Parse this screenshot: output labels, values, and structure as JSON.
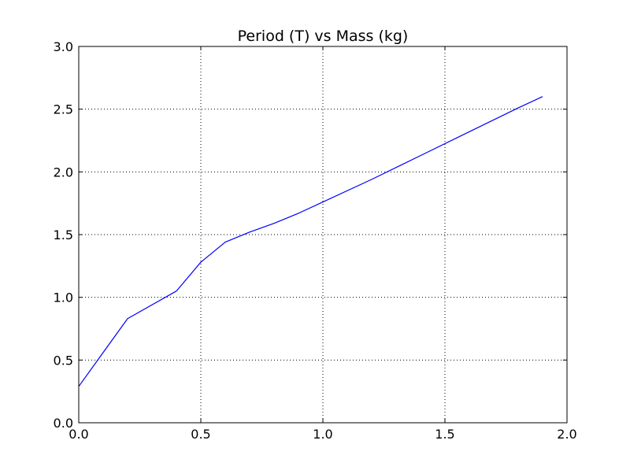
{
  "chart_data": {
    "type": "line",
    "title": "Period (T) vs Mass (kg)",
    "xlabel": "",
    "ylabel": "",
    "xlim": [
      0.0,
      2.0
    ],
    "ylim": [
      0.0,
      3.0
    ],
    "grid": true,
    "x_ticks": [
      {
        "value": 0.0,
        "label": "0.0"
      },
      {
        "value": 0.5,
        "label": "0.5"
      },
      {
        "value": 1.0,
        "label": "1.0"
      },
      {
        "value": 1.5,
        "label": "1.5"
      },
      {
        "value": 2.0,
        "label": "2.0"
      }
    ],
    "y_ticks": [
      {
        "value": 0.0,
        "label": "0.0"
      },
      {
        "value": 0.5,
        "label": "0.5"
      },
      {
        "value": 1.0,
        "label": "1.0"
      },
      {
        "value": 1.5,
        "label": "1.5"
      },
      {
        "value": 2.0,
        "label": "2.0"
      },
      {
        "value": 2.5,
        "label": "2.5"
      },
      {
        "value": 3.0,
        "label": "3.0"
      }
    ],
    "series": [
      {
        "color": "#0000ff",
        "x": [
          0.0,
          0.2,
          0.4,
          0.5,
          0.6,
          0.7,
          0.8,
          0.9,
          1.0,
          1.2,
          1.4,
          1.6,
          1.8,
          1.9
        ],
        "y": [
          0.29,
          0.83,
          1.05,
          1.28,
          1.44,
          1.52,
          1.59,
          1.67,
          1.76,
          1.94,
          2.13,
          2.32,
          2.51,
          2.6
        ]
      }
    ]
  }
}
